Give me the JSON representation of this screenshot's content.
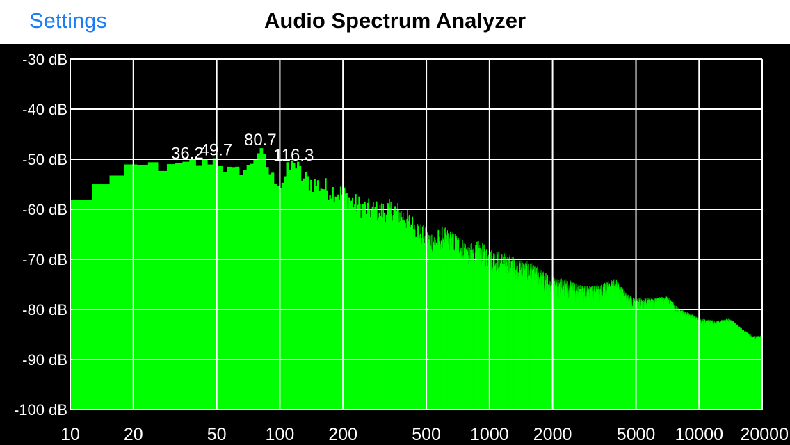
{
  "nav": {
    "back_label": "Settings",
    "title": "Audio Spectrum Analyzer"
  },
  "chart_data": {
    "type": "bar",
    "title": "",
    "xlabel": "",
    "ylabel": "",
    "x_scale": "log",
    "xlim": [
      10,
      20000
    ],
    "ylim": [
      -100,
      -30
    ],
    "grid": true,
    "bar_color": "#00ff00",
    "grid_color": "#ffffff",
    "background": "#000000",
    "y_ticks": [
      {
        "value": -30,
        "label": "-30 dB"
      },
      {
        "value": -40,
        "label": "-40 dB"
      },
      {
        "value": -50,
        "label": "-50 dB"
      },
      {
        "value": -60,
        "label": "-60 dB"
      },
      {
        "value": -70,
        "label": "-70 dB"
      },
      {
        "value": -80,
        "label": "-80 dB"
      },
      {
        "value": -90,
        "label": "-90 dB"
      },
      {
        "value": -100,
        "label": "-100 dB"
      }
    ],
    "x_ticks": [
      {
        "value": 10,
        "label": "10"
      },
      {
        "value": 20,
        "label": "20"
      },
      {
        "value": 50,
        "label": "50"
      },
      {
        "value": 100,
        "label": "100"
      },
      {
        "value": 200,
        "label": "200"
      },
      {
        "value": 500,
        "label": "500"
      },
      {
        "value": 1000,
        "label": "1000"
      },
      {
        "value": 2000,
        "label": "2000"
      },
      {
        "value": 5000,
        "label": "5000"
      },
      {
        "value": 10000,
        "label": "10000"
      },
      {
        "value": 20000,
        "label": "20000"
      }
    ],
    "peaks": [
      {
        "freq": 36.2,
        "db": -50.5,
        "label": "36.2"
      },
      {
        "freq": 49.7,
        "db": -49.8,
        "label": "49.7"
      },
      {
        "freq": 80.7,
        "db": -47.8,
        "label": "80.7"
      },
      {
        "freq": 116.3,
        "db": -50.8,
        "label": "116.3"
      }
    ],
    "spectrum": {
      "freq": [
        10,
        11,
        14,
        17,
        20,
        25,
        30,
        36.2,
        42,
        49.7,
        55,
        60,
        70,
        80.7,
        90,
        100,
        116.3,
        130,
        150,
        170,
        200,
        230,
        260,
        300,
        350,
        400,
        450,
        500,
        550,
        600,
        700,
        800,
        900,
        1000,
        1200,
        1400,
        1600,
        1800,
        2000,
        2300,
        2600,
        3000,
        3500,
        4000,
        4500,
        5000,
        6000,
        7000,
        8000,
        9000,
        10000,
        12000,
        14000,
        16000,
        18000,
        20000
      ],
      "db": [
        -63,
        -59,
        -54.5,
        -53.5,
        -52,
        -51,
        -52,
        -50.5,
        -51,
        -49.8,
        -52,
        -52.5,
        -52,
        -47.8,
        -53,
        -55,
        -50.8,
        -54,
        -55,
        -56,
        -57,
        -59,
        -60,
        -60.5,
        -60,
        -62,
        -64,
        -66,
        -66.5,
        -65.5,
        -67,
        -69,
        -68.5,
        -70,
        -71,
        -72,
        -73,
        -74.5,
        -75.5,
        -76,
        -77,
        -77.5,
        -77,
        -76,
        -79,
        -80,
        -80,
        -79.5,
        -82,
        -83,
        -84,
        -84.5,
        -84,
        -86,
        -87.5,
        -87.5
      ]
    }
  }
}
